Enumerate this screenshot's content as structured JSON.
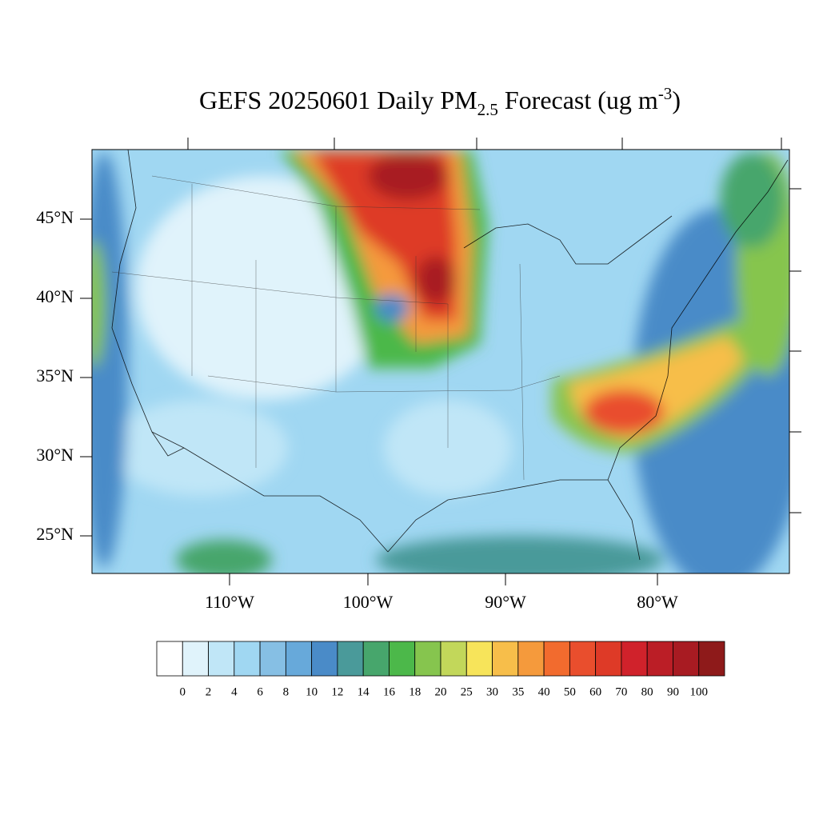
{
  "title": {
    "main": "GEFS 20250601 Daily PM",
    "sub": "2.5",
    "rest": " Forecast (ug m",
    "sup": "-3",
    "end": ")"
  },
  "lat_labels": [
    "45°N",
    "40°N",
    "35°N",
    "30°N",
    "25°N"
  ],
  "lon_labels": [
    "110°W",
    "100°W",
    "90°W",
    "80°W"
  ],
  "colorbar": {
    "labels": [
      "0",
      "2",
      "4",
      "6",
      "8",
      "10",
      "12",
      "14",
      "16",
      "18",
      "20",
      "25",
      "30",
      "35",
      "40",
      "50",
      "60",
      "70",
      "80",
      "90",
      "100"
    ],
    "colors": [
      "#ffffff",
      "#e0f3fb",
      "#c0e6f7",
      "#a0d7f2",
      "#86bfe4",
      "#67a9da",
      "#4a8bc8",
      "#4a9a9a",
      "#47a66c",
      "#4cb84a",
      "#86c54e",
      "#c2d75a",
      "#f7e45a",
      "#f7be4a",
      "#f59a3c",
      "#f26b2e",
      "#e94e2d",
      "#de3a27",
      "#d0222b",
      "#bb1e26",
      "#a81b22",
      "#8e1a1a"
    ]
  }
}
